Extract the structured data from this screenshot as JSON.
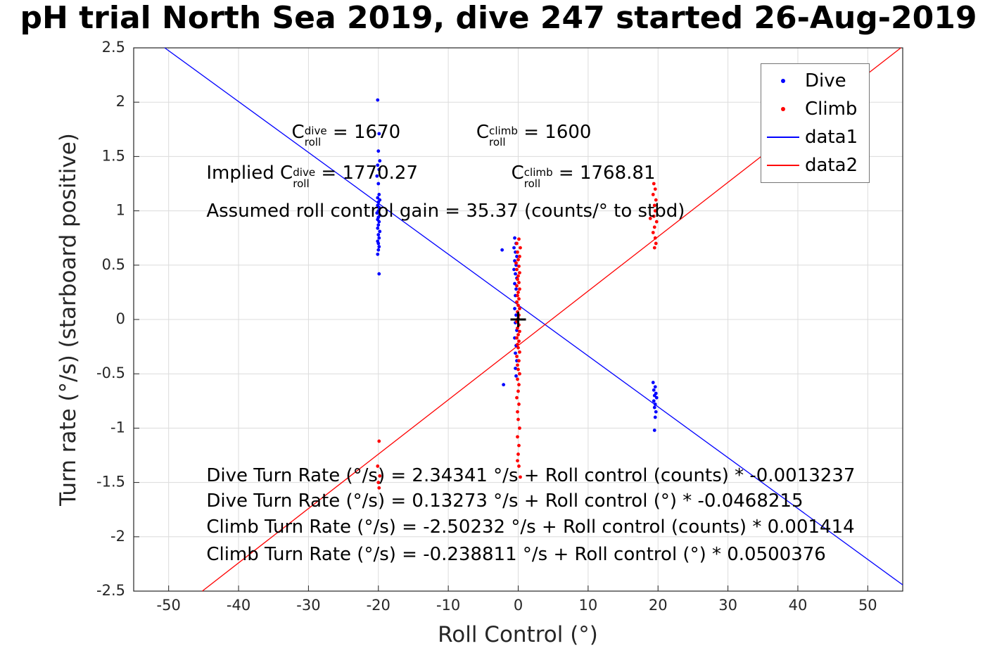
{
  "chart_data": {
    "type": "scatter",
    "title": "pH trial North Sea 2019, dive 247 started 26-Aug-2019",
    "xlabel": "Roll Control (°)",
    "ylabel": "Turn rate (°/s) (starboard positive)",
    "xlim": [
      -55,
      55
    ],
    "ylim": [
      -2.5,
      2.5
    ],
    "xticks": [
      -50,
      -40,
      -30,
      -20,
      -10,
      0,
      10,
      20,
      30,
      40,
      50
    ],
    "yticks": [
      -2.5,
      -2,
      -1.5,
      -1,
      -0.5,
      0,
      0.5,
      1,
      1.5,
      2,
      2.5
    ],
    "grid": true,
    "legend_position": "top-right",
    "series": [
      {
        "name": "Dive",
        "type": "scatter",
        "color": "#0000FF",
        "points": [
          [
            -20.1,
            2.02
          ],
          [
            -19.9,
            1.71
          ],
          [
            -20.0,
            1.55
          ],
          [
            -19.8,
            1.46
          ],
          [
            -20.1,
            1.42
          ],
          [
            -19.9,
            1.38
          ],
          [
            -20.2,
            1.32
          ],
          [
            -20.0,
            1.25
          ],
          [
            -19.9,
            1.15
          ],
          [
            -20.1,
            1.12
          ],
          [
            -19.8,
            1.1
          ],
          [
            -20.0,
            1.08
          ],
          [
            -20.1,
            1.05
          ],
          [
            -19.9,
            1.03
          ],
          [
            -20.0,
            1.0
          ],
          [
            -20.2,
            0.98
          ],
          [
            -19.8,
            0.96
          ],
          [
            -20.0,
            0.94
          ],
          [
            -20.1,
            0.92
          ],
          [
            -19.9,
            0.9
          ],
          [
            -20.0,
            0.87
          ],
          [
            -20.1,
            0.84
          ],
          [
            -19.8,
            0.81
          ],
          [
            -20.0,
            0.78
          ],
          [
            -19.9,
            0.75
          ],
          [
            -20.1,
            0.72
          ],
          [
            -20.0,
            0.7
          ],
          [
            -19.9,
            0.67
          ],
          [
            -20.0,
            0.64
          ],
          [
            -20.1,
            0.6
          ],
          [
            -19.9,
            0.42
          ],
          [
            -0.5,
            0.75
          ],
          [
            -0.3,
            0.7
          ],
          [
            -0.6,
            0.66
          ],
          [
            -0.4,
            0.62
          ],
          [
            -0.2,
            0.58
          ],
          [
            -0.5,
            0.54
          ],
          [
            -0.3,
            0.5
          ],
          [
            -0.6,
            0.46
          ],
          [
            -0.4,
            0.42
          ],
          [
            -0.2,
            0.38
          ],
          [
            -0.5,
            0.33
          ],
          [
            -0.3,
            0.28
          ],
          [
            -0.4,
            0.22
          ],
          [
            -0.2,
            0.16
          ],
          [
            -0.5,
            0.1
          ],
          [
            -0.3,
            0.04
          ],
          [
            -0.4,
            -0.03
          ],
          [
            -0.2,
            -0.1
          ],
          [
            -0.5,
            -0.17
          ],
          [
            -0.3,
            -0.24
          ],
          [
            -0.4,
            -0.31
          ],
          [
            -0.2,
            -0.38
          ],
          [
            -0.4,
            -0.45
          ],
          [
            -0.3,
            -0.52
          ],
          [
            -2.3,
            0.64
          ],
          [
            -2.1,
            -0.6
          ],
          [
            19.3,
            -0.58
          ],
          [
            19.6,
            -0.62
          ],
          [
            19.4,
            -0.65
          ],
          [
            19.7,
            -0.68
          ],
          [
            19.5,
            -0.7
          ],
          [
            19.8,
            -0.72
          ],
          [
            19.4,
            -0.75
          ],
          [
            19.6,
            -0.78
          ],
          [
            19.5,
            -0.81
          ],
          [
            19.7,
            -0.85
          ],
          [
            19.6,
            -0.9
          ],
          [
            19.5,
            -1.02
          ]
        ]
      },
      {
        "name": "Climb",
        "type": "scatter",
        "color": "#FF0000",
        "points": [
          [
            -19.9,
            -1.12
          ],
          [
            -20.1,
            -1.35
          ],
          [
            -19.8,
            -1.44
          ],
          [
            -20.0,
            -1.5
          ],
          [
            -19.9,
            -1.55
          ],
          [
            0.1,
            0.74
          ],
          [
            -0.2,
            0.7
          ],
          [
            0.3,
            0.66
          ],
          [
            -0.1,
            0.62
          ],
          [
            0.2,
            0.58
          ],
          [
            0.0,
            0.55
          ],
          [
            -0.3,
            0.52
          ],
          [
            0.1,
            0.49
          ],
          [
            -0.2,
            0.46
          ],
          [
            0.2,
            0.43
          ],
          [
            0.0,
            0.4
          ],
          [
            -0.1,
            0.37
          ],
          [
            0.1,
            0.34
          ],
          [
            -0.2,
            0.31
          ],
          [
            0.2,
            0.28
          ],
          [
            0.0,
            0.25
          ],
          [
            -0.1,
            0.22
          ],
          [
            0.1,
            0.19
          ],
          [
            -0.2,
            0.16
          ],
          [
            0.0,
            0.13
          ],
          [
            0.2,
            0.1
          ],
          [
            -0.1,
            0.07
          ],
          [
            0.1,
            0.04
          ],
          [
            0.0,
            0.01
          ],
          [
            -0.2,
            -0.02
          ],
          [
            0.1,
            -0.05
          ],
          [
            -0.1,
            -0.08
          ],
          [
            0.2,
            -0.11
          ],
          [
            0.0,
            -0.14
          ],
          [
            -0.2,
            -0.17
          ],
          [
            0.1,
            -0.2
          ],
          [
            -0.1,
            -0.23
          ],
          [
            0.0,
            -0.26
          ],
          [
            0.2,
            -0.3
          ],
          [
            -0.2,
            -0.34
          ],
          [
            0.1,
            -0.38
          ],
          [
            -0.1,
            -0.42
          ],
          [
            0.0,
            -0.46
          ],
          [
            0.2,
            -0.5
          ],
          [
            -0.1,
            -0.55
          ],
          [
            0.1,
            -0.6
          ],
          [
            0.0,
            -0.66
          ],
          [
            -0.2,
            -0.72
          ],
          [
            0.1,
            -0.78
          ],
          [
            -0.1,
            -0.85
          ],
          [
            0.0,
            -0.92
          ],
          [
            0.2,
            -1.0
          ],
          [
            -0.1,
            -1.08
          ],
          [
            0.1,
            -1.16
          ],
          [
            0.0,
            -1.24
          ],
          [
            -0.1,
            -1.3
          ],
          [
            0.1,
            -1.35
          ],
          [
            0.3,
            -1.45
          ],
          [
            19.4,
            1.25
          ],
          [
            19.6,
            1.2
          ],
          [
            19.3,
            1.15
          ],
          [
            19.7,
            1.1
          ],
          [
            19.5,
            1.05
          ],
          [
            19.6,
            1.0
          ],
          [
            19.4,
            0.95
          ],
          [
            18.9,
            0.93
          ],
          [
            19.8,
            0.9
          ],
          [
            19.5,
            0.85
          ],
          [
            19.3,
            0.8
          ],
          [
            19.6,
            0.75
          ],
          [
            19.7,
            0.7
          ],
          [
            19.5,
            0.66
          ]
        ]
      },
      {
        "name": "data1",
        "type": "line",
        "color": "#0000FF",
        "slope": -0.0468215,
        "intercept": 0.13273
      },
      {
        "name": "data2",
        "type": "line",
        "color": "#FF0000",
        "slope": 0.0500376,
        "intercept": -0.238811
      }
    ],
    "origin_marker": {
      "x": 0,
      "y": 0,
      "symbol": "+",
      "color": "#000000"
    },
    "legend": {
      "items": [
        {
          "label": "Dive",
          "swatch": "dot",
          "color": "#0000FF"
        },
        {
          "label": "Climb",
          "swatch": "dot",
          "color": "#FF0000"
        },
        {
          "label": "data1",
          "swatch": "line",
          "color": "#0000FF"
        },
        {
          "label": "data2",
          "swatch": "line",
          "color": "#FF0000"
        }
      ]
    },
    "annotations": [
      {
        "name": "c-roll-dive",
        "x": -32.4,
        "y": 1.7,
        "segments": [
          {
            "t": "C"
          },
          {
            "sup": "dive",
            "sub": "roll"
          },
          {
            "t": " = 1670"
          }
        ]
      },
      {
        "name": "c-roll-climb",
        "x": -6.0,
        "y": 1.7,
        "segments": [
          {
            "t": "C"
          },
          {
            "sup": "climb",
            "sub": "roll"
          },
          {
            "t": " = 1600"
          }
        ]
      },
      {
        "name": "implied-c-roll-dive",
        "x": -44.6,
        "y": 1.32,
        "segments": [
          {
            "t": "Implied C"
          },
          {
            "sup": "dive",
            "sub": "roll"
          },
          {
            "t": " = 1770.27"
          }
        ]
      },
      {
        "name": "implied-c-roll-climb",
        "x": -1.0,
        "y": 1.32,
        "segments": [
          {
            "t": "C"
          },
          {
            "sup": "climb",
            "sub": "roll"
          },
          {
            "t": " = 1768.81"
          }
        ]
      },
      {
        "name": "assumed-gain",
        "x": -44.6,
        "y": 1.0,
        "segments": [
          {
            "t": "Assumed roll control gain = 35.37 (counts/° to stbd)"
          }
        ]
      },
      {
        "name": "dive-eq-counts",
        "x": -44.6,
        "y": -1.44,
        "segments": [
          {
            "t": "Dive Turn Rate (°/s) = 2.34341 °/s + Roll control (counts) * -0.0013237"
          }
        ]
      },
      {
        "name": "dive-eq-deg",
        "x": -44.6,
        "y": -1.67,
        "segments": [
          {
            "t": "Dive Turn Rate (°/s) = 0.13273 °/s + Roll control (°) * -0.0468215"
          }
        ]
      },
      {
        "name": "climb-eq-counts",
        "x": -44.6,
        "y": -1.91,
        "segments": [
          {
            "t": "Climb Turn Rate (°/s) = -2.50232 °/s + Roll control (counts) * 0.001414"
          }
        ]
      },
      {
        "name": "climb-eq-deg",
        "x": -44.6,
        "y": -2.16,
        "segments": [
          {
            "t": "Climb Turn Rate (°/s) = -0.238811 °/s + Roll control (°) * 0.0500376"
          }
        ]
      }
    ],
    "style": {
      "grid_color": "#dcdcdc",
      "axis_color": "#262626",
      "tick_label_color": "#262626",
      "background": "#ffffff"
    }
  }
}
